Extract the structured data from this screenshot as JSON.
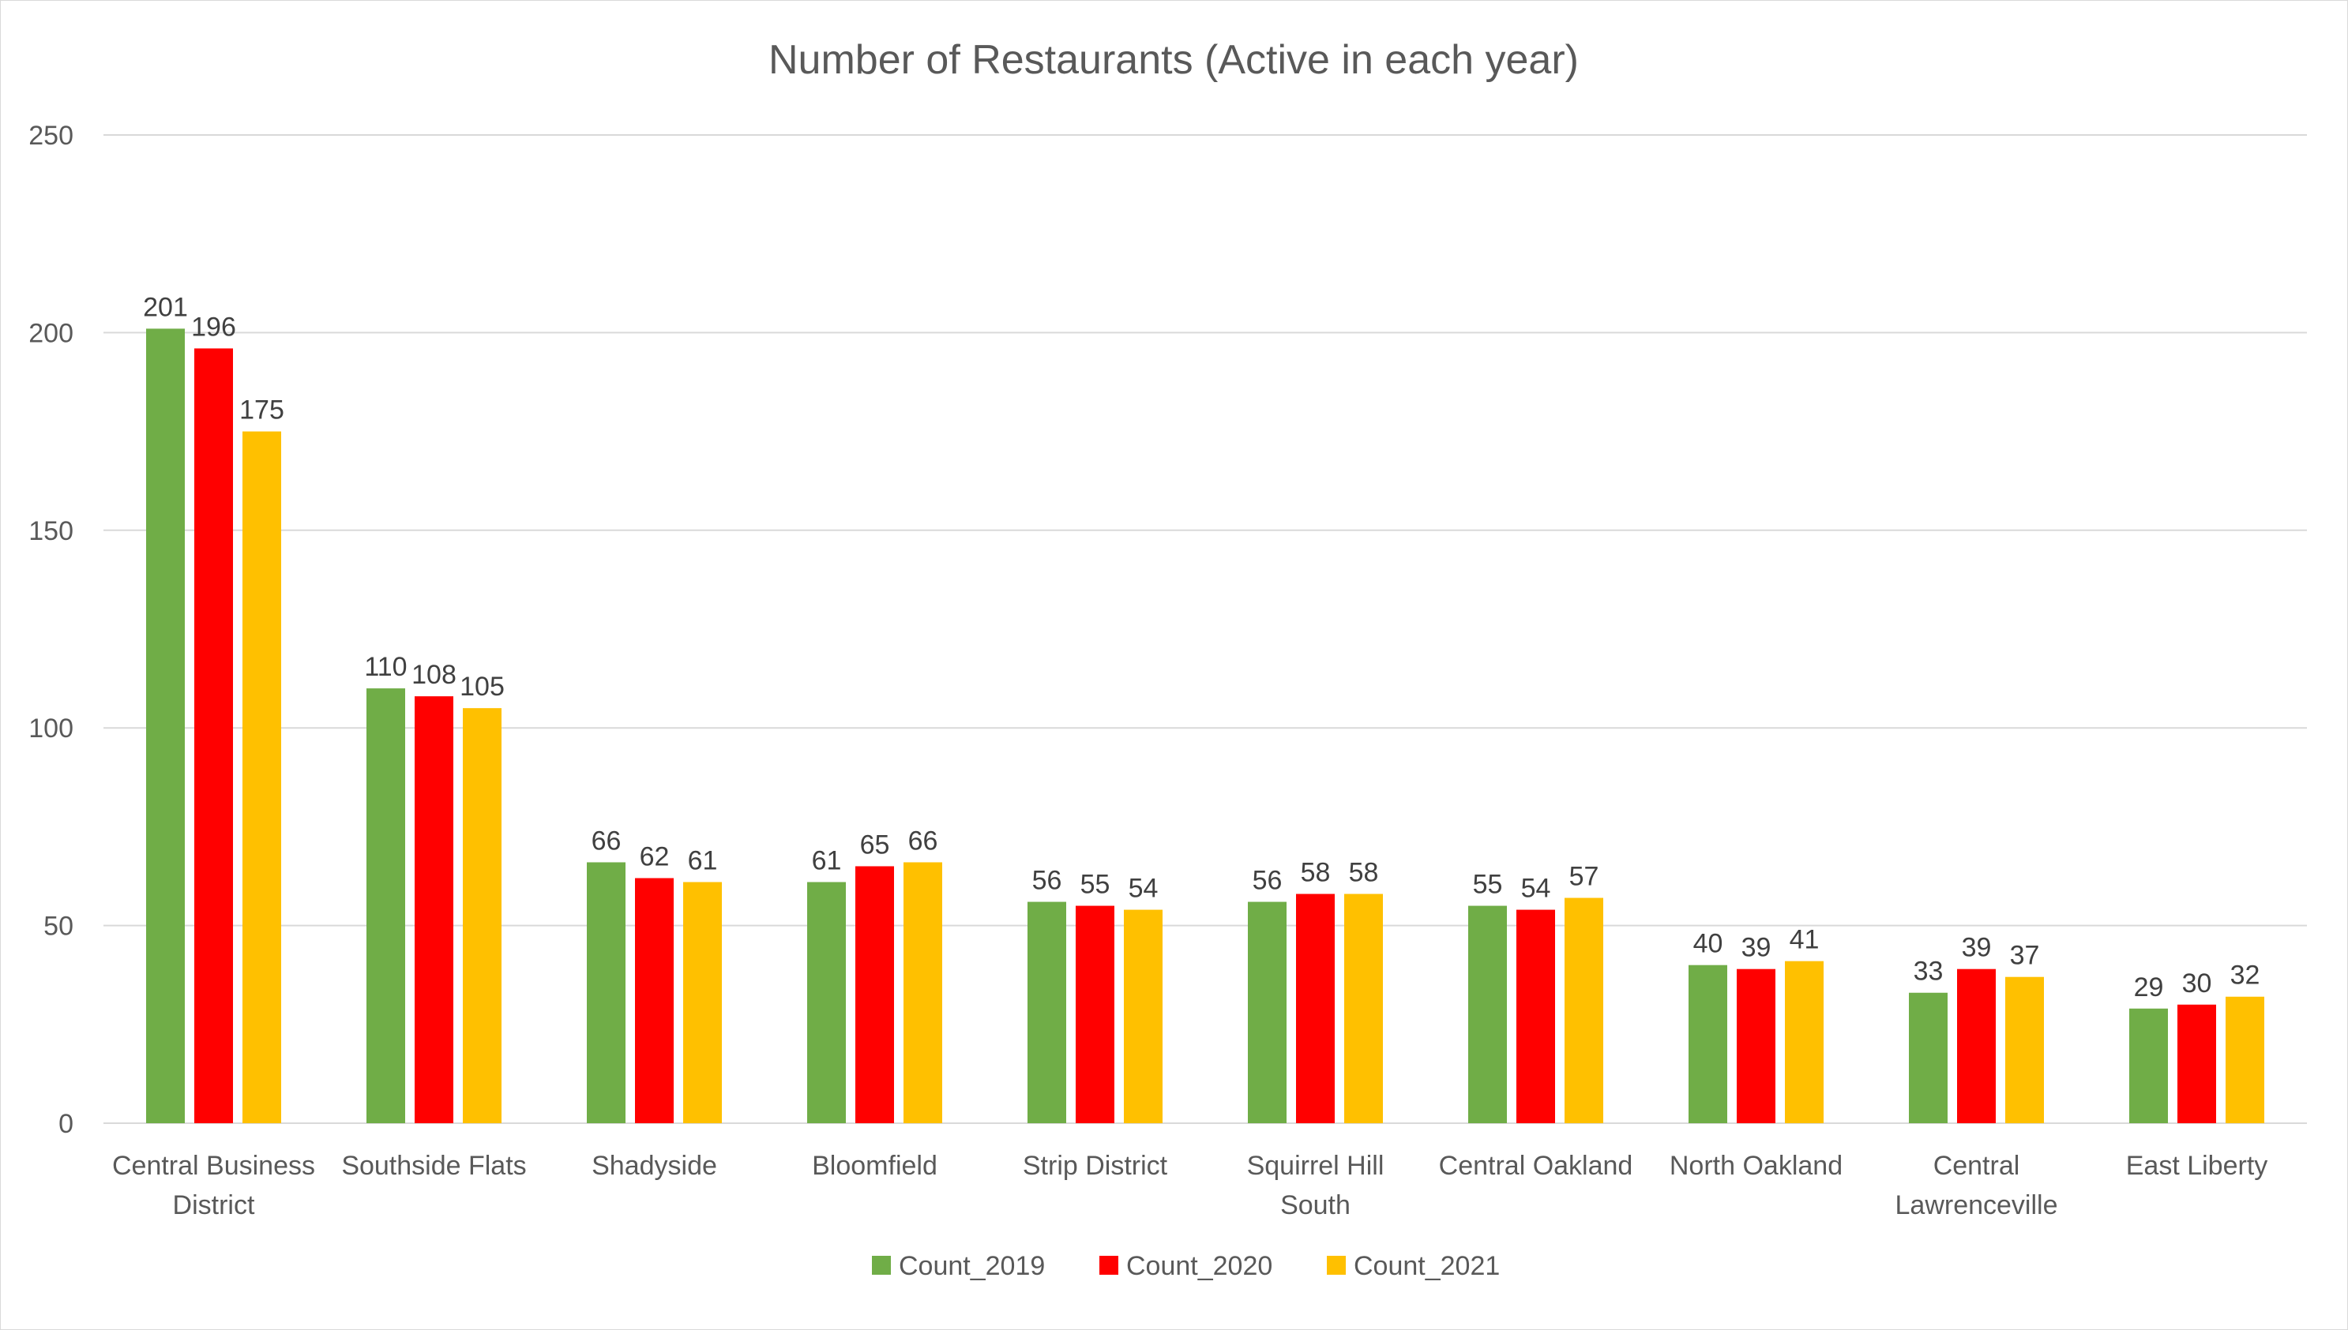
{
  "chart_data": {
    "type": "bar",
    "title": "Number of Restaurants (Active in each year)",
    "xlabel": "",
    "ylabel": "",
    "ylim": [
      0,
      250
    ],
    "yticks": [
      "0",
      "50",
      "100",
      "150",
      "200",
      "250"
    ],
    "grid": true,
    "legend_position": "bottom",
    "categories": [
      [
        "Central Business",
        "District"
      ],
      [
        "Southside Flats"
      ],
      [
        "Shadyside"
      ],
      [
        "Bloomfield"
      ],
      [
        "Strip District"
      ],
      [
        "Squirrel Hill",
        "South"
      ],
      [
        "Central Oakland"
      ],
      [
        "North Oakland"
      ],
      [
        "Central",
        "Lawrenceville"
      ],
      [
        "East Liberty"
      ]
    ],
    "series": [
      {
        "name": "Count_2019",
        "color": "#70ad47",
        "values": [
          201,
          110,
          66,
          61,
          56,
          56,
          55,
          40,
          33,
          29
        ]
      },
      {
        "name": "Count_2020",
        "color": "#ff0000",
        "values": [
          196,
          108,
          62,
          65,
          55,
          58,
          54,
          39,
          39,
          30
        ]
      },
      {
        "name": "Count_2021",
        "color": "#ffc000",
        "values": [
          175,
          105,
          61,
          66,
          54,
          58,
          57,
          41,
          37,
          32
        ]
      }
    ]
  }
}
